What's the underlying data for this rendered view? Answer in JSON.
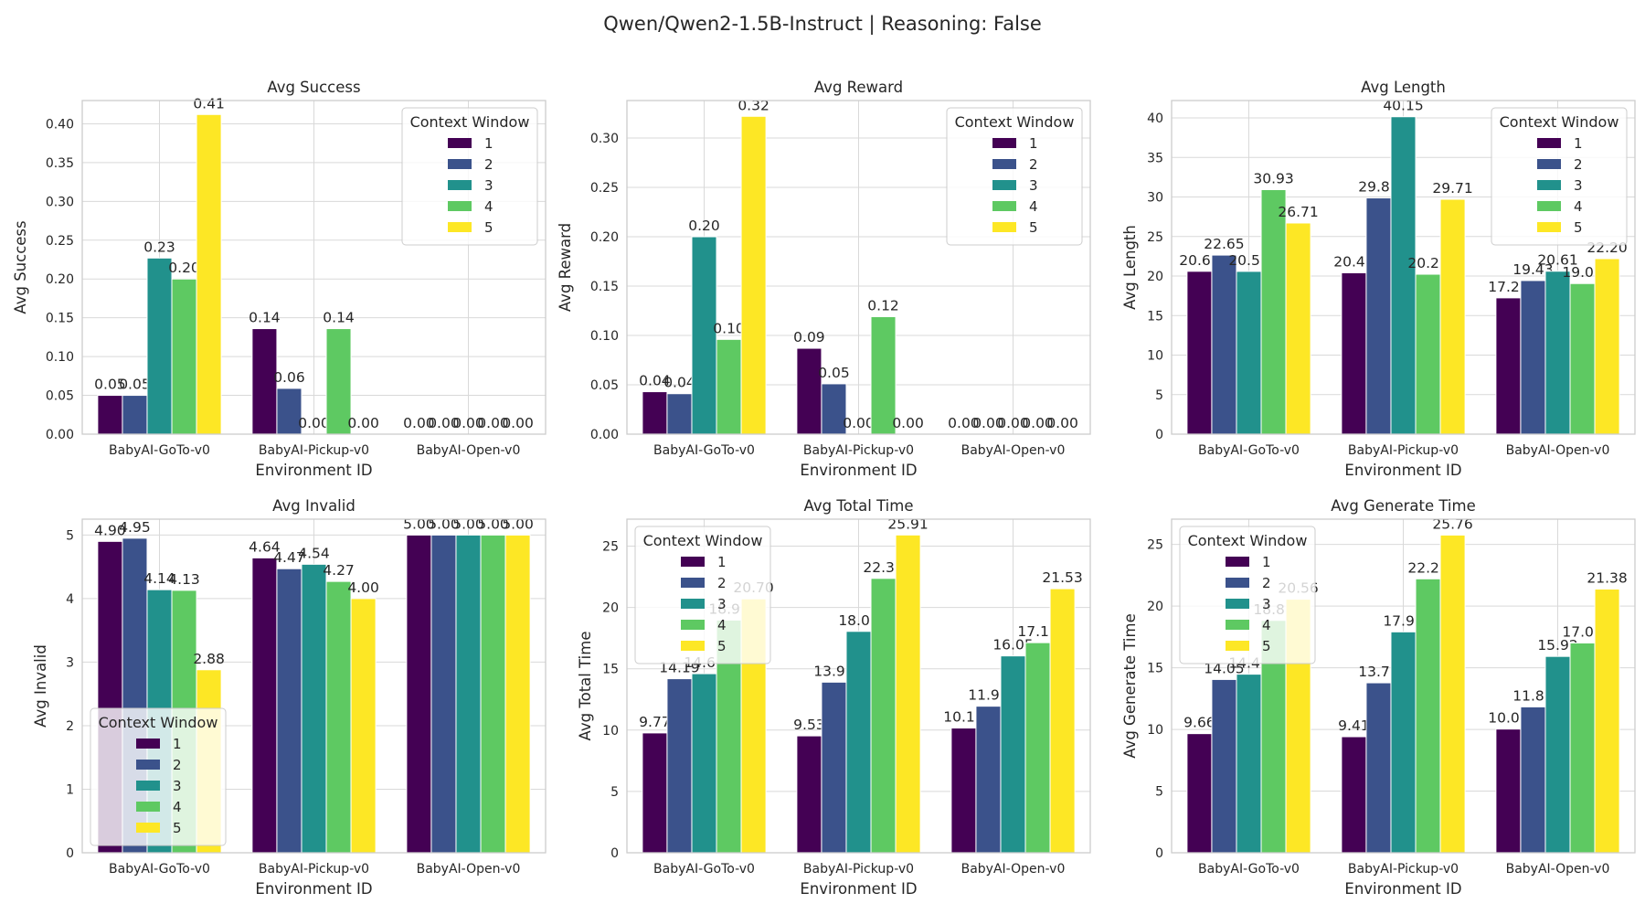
{
  "suptitle": "Qwen/Qwen2-1.5B-Instruct | Reasoning: False",
  "palette": [
    "#440154",
    "#3b528b",
    "#21918c",
    "#5ec962",
    "#fde725"
  ],
  "legend_title": "Context Window",
  "chart_data": [
    {
      "type": "bar",
      "title": "Avg Success",
      "xlabel": "Environment ID",
      "ylabel": "Avg Success",
      "categories": [
        "BabyAI-GoTo-v0",
        "BabyAI-Pickup-v0",
        "BabyAI-Open-v0"
      ],
      "ylim": [
        0,
        0.43
      ],
      "yticks": [
        0,
        0.05,
        0.1,
        0.15,
        0.2,
        0.25,
        0.3,
        0.35,
        0.4
      ],
      "tick_decimals": 2,
      "legend_position": "upper right",
      "series": [
        {
          "name": "1",
          "values": [
            0.05,
            0.136,
            0.0
          ],
          "labels": [
            "0.05",
            "0.14",
            "0.00"
          ]
        },
        {
          "name": "2",
          "values": [
            0.05,
            0.059,
            0.0
          ],
          "labels": [
            "0.05",
            "0.06",
            "0.00"
          ]
        },
        {
          "name": "3",
          "values": [
            0.227,
            0.0,
            0.0
          ],
          "labels": [
            "0.23",
            "0.00",
            "0.00"
          ]
        },
        {
          "name": "4",
          "values": [
            0.2,
            0.136,
            0.0
          ],
          "labels": [
            "0.20",
            "0.14",
            "0.00"
          ]
        },
        {
          "name": "5",
          "values": [
            0.412,
            0.0,
            0.0
          ],
          "labels": [
            "0.41",
            "0.00",
            "0.00"
          ]
        }
      ]
    },
    {
      "type": "bar",
      "title": "Avg Reward",
      "xlabel": "Environment ID",
      "ylabel": "Avg Reward",
      "categories": [
        "BabyAI-GoTo-v0",
        "BabyAI-Pickup-v0",
        "BabyAI-Open-v0"
      ],
      "ylim": [
        0,
        0.338
      ],
      "yticks": [
        0,
        0.05,
        0.1,
        0.15,
        0.2,
        0.25,
        0.3
      ],
      "tick_decimals": 2,
      "legend_position": "upper right",
      "series": [
        {
          "name": "1",
          "values": [
            0.043,
            0.087,
            0.0
          ],
          "labels": [
            "0.04",
            "0.09",
            "0.00"
          ]
        },
        {
          "name": "2",
          "values": [
            0.041,
            0.051,
            0.0
          ],
          "labels": [
            "0.04",
            "0.05",
            "0.00"
          ]
        },
        {
          "name": "3",
          "values": [
            0.2,
            0.0,
            0.0
          ],
          "labels": [
            "0.20",
            "0.00",
            "0.00"
          ]
        },
        {
          "name": "4",
          "values": [
            0.096,
            0.119,
            0.0
          ],
          "labels": [
            "0.10",
            "0.12",
            "0.00"
          ]
        },
        {
          "name": "5",
          "values": [
            0.322,
            0.0,
            0.0
          ],
          "labels": [
            "0.32",
            "0.00",
            "0.00"
          ]
        }
      ]
    },
    {
      "type": "bar",
      "title": "Avg Length",
      "xlabel": "Environment ID",
      "ylabel": "Avg Length",
      "categories": [
        "BabyAI-GoTo-v0",
        "BabyAI-Pickup-v0",
        "BabyAI-Open-v0"
      ],
      "ylim": [
        0,
        42.2
      ],
      "yticks": [
        0,
        5,
        10,
        15,
        20,
        25,
        30,
        35,
        40
      ],
      "tick_decimals": 0,
      "legend_position": "upper right",
      "series": [
        {
          "name": "1",
          "values": [
            20.6,
            20.41,
            17.24
          ],
          "labels": [
            "20.60",
            "20.41",
            "17.24"
          ]
        },
        {
          "name": "2",
          "values": [
            22.65,
            29.88,
            19.43
          ],
          "labels": [
            "22.65",
            "29.88",
            "19.43"
          ]
        },
        {
          "name": "3",
          "values": [
            20.59,
            40.15,
            20.61
          ],
          "labels": [
            "20.59",
            "40.15",
            "20.61"
          ]
        },
        {
          "name": "4",
          "values": [
            30.93,
            20.23,
            19.05
          ],
          "labels": [
            "30.93",
            "20.23",
            "19.05"
          ]
        },
        {
          "name": "5",
          "values": [
            26.71,
            29.71,
            22.2
          ],
          "labels": [
            "26.71",
            "29.71",
            "22.20"
          ]
        }
      ]
    },
    {
      "type": "bar",
      "title": "Avg Invalid",
      "xlabel": "Environment ID",
      "ylabel": "Avg Invalid",
      "categories": [
        "BabyAI-GoTo-v0",
        "BabyAI-Pickup-v0",
        "BabyAI-Open-v0"
      ],
      "ylim": [
        0,
        5.25
      ],
      "yticks": [
        0,
        1,
        2,
        3,
        4,
        5
      ],
      "tick_decimals": 0,
      "legend_position": "lower left",
      "series": [
        {
          "name": "1",
          "values": [
            4.9,
            4.64,
            5.0
          ],
          "labels": [
            "4.90",
            "4.64",
            "5.00"
          ]
        },
        {
          "name": "2",
          "values": [
            4.95,
            4.47,
            5.0
          ],
          "labels": [
            "4.95",
            "4.47",
            "5.00"
          ]
        },
        {
          "name": "3",
          "values": [
            4.14,
            4.54,
            5.0
          ],
          "labels": [
            "4.14",
            "4.54",
            "5.00"
          ]
        },
        {
          "name": "4",
          "values": [
            4.13,
            4.27,
            5.0
          ],
          "labels": [
            "4.13",
            "4.27",
            "5.00"
          ]
        },
        {
          "name": "5",
          "values": [
            2.88,
            4.0,
            5.0
          ],
          "labels": [
            "2.88",
            "4.00",
            "5.00"
          ]
        }
      ]
    },
    {
      "type": "bar",
      "title": "Avg Total Time",
      "xlabel": "Environment ID",
      "ylabel": "Avg Total Time",
      "categories": [
        "BabyAI-GoTo-v0",
        "BabyAI-Pickup-v0",
        "BabyAI-Open-v0"
      ],
      "ylim": [
        0,
        27.2
      ],
      "yticks": [
        0,
        5,
        10,
        15,
        20,
        25
      ],
      "tick_decimals": 0,
      "legend_position": "upper left",
      "series": [
        {
          "name": "1",
          "values": [
            9.77,
            9.53,
            10.17
          ],
          "labels": [
            "9.77",
            "9.53",
            "10.17"
          ]
        },
        {
          "name": "2",
          "values": [
            14.19,
            13.91,
            11.95
          ],
          "labels": [
            "14.19",
            "13.91",
            "11.95"
          ]
        },
        {
          "name": "3",
          "values": [
            14.6,
            18.05,
            16.05
          ],
          "labels": [
            "14.60",
            "18.05",
            "16.05"
          ]
        },
        {
          "name": "4",
          "values": [
            18.97,
            22.37,
            17.13
          ],
          "labels": [
            "18.97",
            "22.37",
            "17.13"
          ]
        },
        {
          "name": "5",
          "values": [
            20.7,
            25.91,
            21.53
          ],
          "labels": [
            "20.70",
            "25.91",
            "21.53"
          ]
        }
      ]
    },
    {
      "type": "bar",
      "title": "Avg Generate Time",
      "xlabel": "Environment ID",
      "ylabel": "Avg Generate Time",
      "categories": [
        "BabyAI-GoTo-v0",
        "BabyAI-Pickup-v0",
        "BabyAI-Open-v0"
      ],
      "ylim": [
        0,
        27.05
      ],
      "yticks": [
        0,
        5,
        10,
        15,
        20,
        25
      ],
      "tick_decimals": 0,
      "legend_position": "upper left",
      "series": [
        {
          "name": "1",
          "values": [
            9.66,
            9.41,
            10.03
          ],
          "labels": [
            "9.66",
            "9.41",
            "10.03"
          ]
        },
        {
          "name": "2",
          "values": [
            14.05,
            13.78,
            11.83
          ],
          "labels": [
            "14.05",
            "13.78",
            "11.83"
          ]
        },
        {
          "name": "3",
          "values": [
            14.48,
            17.91,
            15.92
          ],
          "labels": [
            "14.48",
            "17.91",
            "15.92"
          ]
        },
        {
          "name": "4",
          "values": [
            18.84,
            22.21,
            17.01
          ],
          "labels": [
            "18.84",
            "22.21",
            "17.01"
          ]
        },
        {
          "name": "5",
          "values": [
            20.56,
            25.76,
            21.38
          ],
          "labels": [
            "20.56",
            "25.76",
            "21.38"
          ]
        }
      ]
    }
  ]
}
